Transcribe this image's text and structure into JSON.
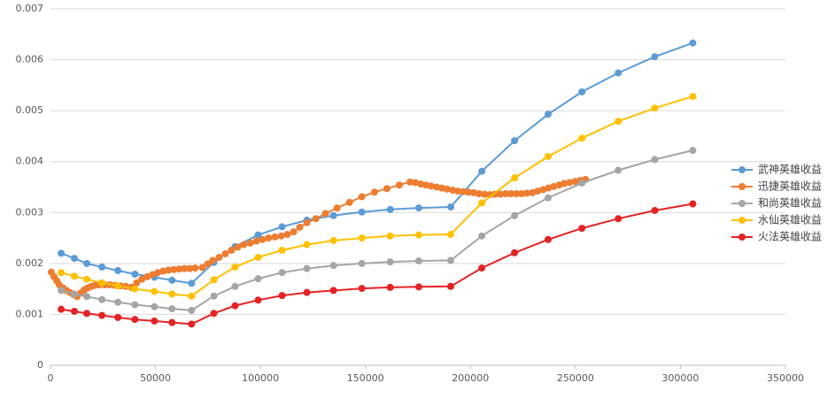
{
  "chart_data": {
    "type": "line",
    "xlim": [
      0,
      350000
    ],
    "xticks": [
      0,
      50000,
      100000,
      150000,
      200000,
      250000,
      300000,
      350000
    ],
    "ylim": [
      0,
      0.007
    ],
    "yticks": [
      0,
      0.001,
      0.002,
      0.003,
      0.004,
      0.005,
      0.006,
      0.007
    ],
    "grid": true,
    "legend": "right",
    "series": [
      {
        "name": "武神英雄收益",
        "color": "#5b9bd5",
        "x": [
          5100,
          11400,
          17300,
          24500,
          32100,
          40200,
          49500,
          57900,
          67200,
          77800,
          87900,
          98900,
          110300,
          122100,
          134800,
          148300,
          161800,
          175400,
          190600,
          205400,
          221000,
          237000,
          253100,
          270400,
          287800,
          305900
        ],
        "values": [
          0.0022,
          0.0021,
          0.002,
          0.00193,
          0.00186,
          0.00179,
          0.00173,
          0.00167,
          0.00161,
          0.00202,
          0.00233,
          0.00256,
          0.00272,
          0.00285,
          0.00294,
          0.00301,
          0.00306,
          0.00309,
          0.00311,
          0.00381,
          0.00441,
          0.00493,
          0.00537,
          0.00574,
          0.00606,
          0.00633
        ]
      },
      {
        "name": "迅捷英雄收益",
        "color": "#ed7d31",
        "x": [
          400,
          1700,
          3000,
          4200,
          5900,
          7600,
          9300,
          11000,
          12700,
          14400,
          16100,
          17700,
          19400,
          21100,
          23200,
          25800,
          28300,
          30800,
          33400,
          35900,
          38500,
          41000,
          43500,
          46100,
          48600,
          51100,
          53700,
          56200,
          58700,
          61300,
          63800,
          66400,
          68900,
          72300,
          74800,
          77300,
          80300,
          83300,
          86200,
          89200,
          92100,
          95100,
          98000,
          101000,
          103900,
          106900,
          109900,
          112800,
          115800,
          118700,
          122100,
          126400,
          131000,
          136500,
          142400,
          148300,
          154300,
          160200,
          166100,
          171200,
          173700,
          176300,
          178800,
          181300,
          183900,
          186400,
          188900,
          191500,
          194000,
          196600,
          199100,
          201600,
          204100,
          206700,
          209200,
          211700,
          214300,
          216800,
          219300,
          221900,
          224400,
          226900,
          229500,
          232000,
          234600,
          237100,
          239600,
          242200,
          244700,
          247200,
          249800,
          252300,
          254800
        ],
        "values": [
          0.00183,
          0.00174,
          0.00166,
          0.00158,
          0.00152,
          0.00147,
          0.00143,
          0.00139,
          0.00135,
          0.00142,
          0.00148,
          0.00152,
          0.00155,
          0.00157,
          0.00158,
          0.00158,
          0.00158,
          0.00157,
          0.00156,
          0.00155,
          0.00153,
          0.00162,
          0.00169,
          0.00174,
          0.00178,
          0.00182,
          0.00185,
          0.00187,
          0.00188,
          0.00189,
          0.0019,
          0.0019,
          0.00191,
          0.00192,
          0.00199,
          0.00206,
          0.00212,
          0.00219,
          0.00226,
          0.00232,
          0.00237,
          0.0024,
          0.00244,
          0.00247,
          0.0025,
          0.00252,
          0.00254,
          0.00257,
          0.00262,
          0.00271,
          0.0028,
          0.00288,
          0.00298,
          0.00309,
          0.0032,
          0.00331,
          0.0034,
          0.00347,
          0.00354,
          0.0036,
          0.00359,
          0.00356,
          0.00354,
          0.00352,
          0.0035,
          0.00348,
          0.00346,
          0.00344,
          0.00342,
          0.00341,
          0.0034,
          0.00339,
          0.00337,
          0.00336,
          0.00335,
          0.00336,
          0.00336,
          0.00337,
          0.00337,
          0.00337,
          0.00337,
          0.00338,
          0.00339,
          0.00342,
          0.00345,
          0.00348,
          0.00351,
          0.00354,
          0.00357,
          0.00359,
          0.00361,
          0.00363,
          0.00365
        ]
      },
      {
        "name": "和尚英雄收益",
        "color": "#a5a5a5",
        "x": [
          5100,
          11400,
          17300,
          24500,
          32100,
          40200,
          49500,
          57900,
          67200,
          77800,
          87900,
          98900,
          110300,
          122100,
          134800,
          148300,
          161800,
          175400,
          190600,
          205400,
          221000,
          237000,
          253100,
          270400,
          287800,
          305900
        ],
        "values": [
          0.00147,
          0.0014,
          0.00135,
          0.00129,
          0.00124,
          0.00119,
          0.00115,
          0.00111,
          0.00108,
          0.00136,
          0.00155,
          0.0017,
          0.00182,
          0.0019,
          0.00196,
          0.002,
          0.00203,
          0.00205,
          0.00206,
          0.00254,
          0.00294,
          0.00329,
          0.00358,
          0.00383,
          0.00404,
          0.00422
        ]
      },
      {
        "name": "水仙英雄收益",
        "color": "#ffc000",
        "x": [
          5100,
          11400,
          17300,
          24500,
          32100,
          40200,
          49500,
          57900,
          67200,
          77800,
          87900,
          98900,
          110300,
          122100,
          134800,
          148300,
          161800,
          175400,
          190600,
          205400,
          221000,
          237000,
          253100,
          270400,
          287800,
          305900
        ],
        "values": [
          0.00182,
          0.00175,
          0.00169,
          0.00162,
          0.00156,
          0.0015,
          0.00145,
          0.0014,
          0.00136,
          0.00168,
          0.00193,
          0.00212,
          0.00226,
          0.00237,
          0.00245,
          0.0025,
          0.00254,
          0.00256,
          0.00257,
          0.00319,
          0.00368,
          0.0041,
          0.00446,
          0.00479,
          0.00505,
          0.00528
        ]
      },
      {
        "name": "火法英雄收益",
        "color": "#e32224",
        "x": [
          5100,
          11400,
          17300,
          24500,
          32100,
          40200,
          49500,
          57900,
          67200,
          77800,
          87900,
          98900,
          110300,
          122100,
          134800,
          148300,
          161800,
          175400,
          190600,
          205400,
          221000,
          237000,
          253100,
          270400,
          287800,
          305900
        ],
        "values": [
          0.0011,
          0.00106,
          0.00102,
          0.00098,
          0.00094,
          0.0009,
          0.00087,
          0.00084,
          0.00081,
          0.00102,
          0.00117,
          0.00128,
          0.00137,
          0.00143,
          0.00147,
          0.00151,
          0.00153,
          0.00154,
          0.00155,
          0.00191,
          0.00221,
          0.00247,
          0.00269,
          0.00288,
          0.00304,
          0.00317
        ]
      }
    ]
  }
}
